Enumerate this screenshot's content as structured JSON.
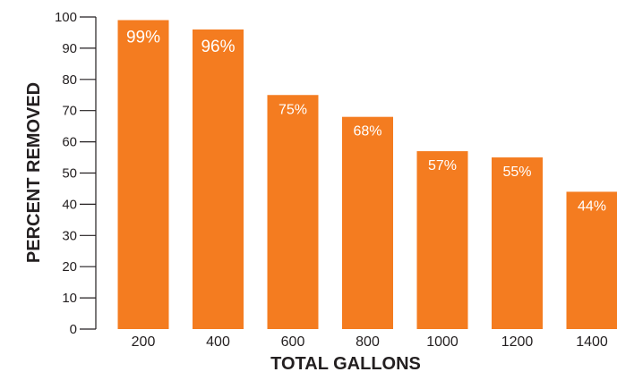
{
  "chart_data": {
    "type": "bar",
    "title": "",
    "xlabel": "TOTAL GALLONS",
    "ylabel": "PERCENT REMOVED",
    "categories": [
      "200",
      "400",
      "600",
      "800",
      "1000",
      "1200",
      "1400"
    ],
    "values": [
      99,
      96,
      75,
      68,
      57,
      55,
      44
    ],
    "data_labels": [
      "99%",
      "96%",
      "75%",
      "68%",
      "57%",
      "55%",
      "44%"
    ],
    "ylim": [
      0,
      100
    ],
    "y_ticks": [
      "0",
      "10",
      "20",
      "30",
      "40",
      "50",
      "60",
      "70",
      "80",
      "90",
      "100"
    ],
    "grid": false,
    "legend": "none",
    "bar_color": "#f47c20",
    "label_color": "#ffffff",
    "axis_color": "#231f20"
  }
}
